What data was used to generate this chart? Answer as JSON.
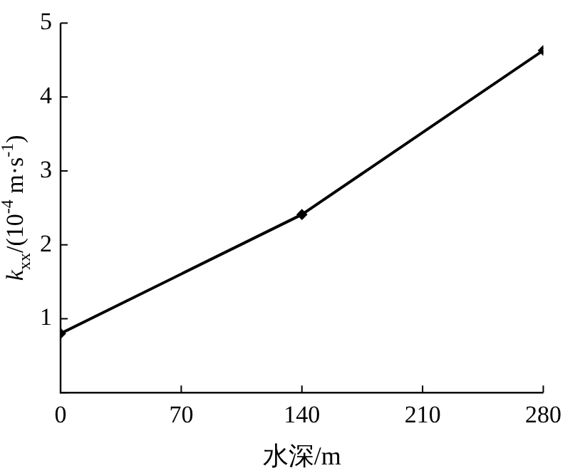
{
  "chart_data": {
    "type": "line",
    "xlabel": "水深/m",
    "ylabel": "k$_{xx}$/(10$^{-4}$ m·s$^{-1}$)",
    "x": [
      0,
      140,
      280
    ],
    "series": [
      {
        "color": "#000000",
        "values": [
          0.8,
          2.41,
          4.63
        ]
      }
    ],
    "xlim": [
      0,
      280
    ],
    "xticks": [
      0,
      70,
      140,
      210,
      280
    ],
    "ylim": [
      0,
      5
    ],
    "yticks": [
      {
        "value": 0,
        "label": null
      },
      1,
      2,
      3,
      4,
      5
    ],
    "grid": false,
    "legend": false,
    "marker": "diamond",
    "line_style": "solid"
  }
}
